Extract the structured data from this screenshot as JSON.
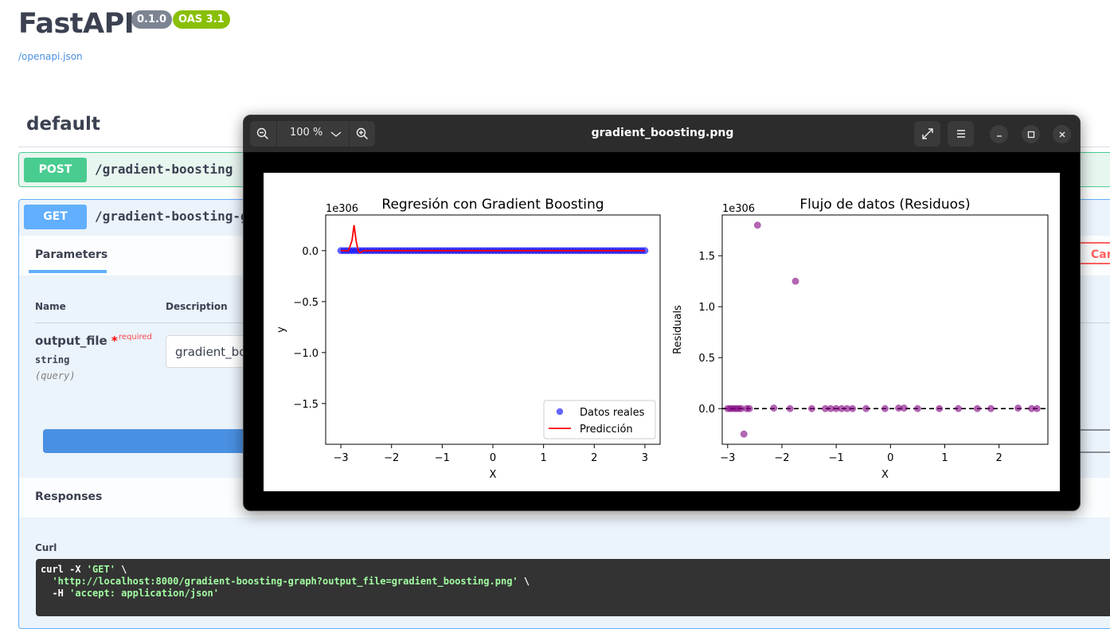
{
  "app": {
    "title": "FastAPI",
    "version_badge": "0.1.0",
    "oas_badge": "OAS 3.1",
    "spec_link": "/openapi.json",
    "section": "default"
  },
  "operations": [
    {
      "method": "POST",
      "path": "/gradient-boosting"
    },
    {
      "method": "GET",
      "path": "/gradient-boosting-g"
    }
  ],
  "params_panel": {
    "tab": "Parameters",
    "cancel_label": "Cancel",
    "col_name": "Name",
    "col_description": "Description",
    "param_name": "output_file",
    "required_star": "*",
    "required_label": "required",
    "param_type": "string",
    "param_in": "(query)",
    "param_value": "gradient_boo"
  },
  "responses": {
    "title": "Responses",
    "curl_label": "Curl",
    "curl_line1_cmd": "curl -X ",
    "curl_line1_str": "'GET'",
    "curl_line1_end": " \\",
    "curl_line2_str": "'http://localhost:8000/gradient-boosting-graph?output_file=gradient_boosting.png'",
    "curl_line2_end": " \\",
    "curl_line3_cmd": "-H ",
    "curl_line3_str": "'accept: application/json'"
  },
  "viewer": {
    "filename": "gradient_boosting.png",
    "zoom_level": "100 %",
    "icons": [
      "zoom-out-icon",
      "chevron-down-icon",
      "zoom-in-icon",
      "fullscreen-icon",
      "menu-icon",
      "minimize-icon",
      "maximize-icon",
      "close-icon"
    ]
  },
  "colors": {
    "post": "#49cc90",
    "get": "#61affe",
    "scatter_real": "#0000ff",
    "prediction_line": "#ff0000",
    "residuals": "#800080"
  },
  "chart_data": [
    {
      "type": "scatter",
      "title": "Regresión con Gradient Boosting",
      "xlabel": "X",
      "ylabel": "y",
      "offset_text": "1e306",
      "xlim": [
        -3.3,
        3.3
      ],
      "ylim": [
        -1.9,
        0.35
      ],
      "xticks": [
        -3,
        -2,
        -1,
        0,
        1,
        2,
        3
      ],
      "xtick_labels": [
        "−3",
        "−2",
        "−1",
        "0",
        "1",
        "2",
        "3"
      ],
      "yticks": [
        0.0,
        -0.5,
        -1.0,
        -1.5
      ],
      "ytick_labels": [
        "0.0",
        "−0.5",
        "−1.0",
        "−1.5"
      ],
      "legend_position": "lower-right",
      "series": [
        {
          "name": "Datos reales",
          "kind": "scatter",
          "x_range": [
            -3,
            3
          ],
          "count": 100,
          "y": 0
        },
        {
          "name": "Predicción",
          "kind": "line",
          "x": [
            -3.0,
            -2.85,
            -2.78,
            -2.74,
            -2.7,
            -2.66,
            -2.62,
            -2.55,
            3.0
          ],
          "y": [
            0.0,
            0.0,
            0.1,
            0.25,
            0.1,
            0.0,
            -0.02,
            0.0,
            0.0
          ]
        }
      ]
    },
    {
      "type": "scatter",
      "title": "Flujo de datos (Residuos)",
      "xlabel": "X",
      "ylabel": "Residuals",
      "offset_text": "1e306",
      "xlim": [
        -3.1,
        2.9
      ],
      "ylim": [
        -0.35,
        1.9
      ],
      "xticks": [
        -3,
        -2,
        -1,
        0,
        1,
        2
      ],
      "xtick_labels": [
        "−3",
        "−2",
        "−1",
        "0",
        "1",
        "2"
      ],
      "yticks": [
        0.0,
        0.5,
        1.0,
        1.5
      ],
      "ytick_labels": [
        "0.0",
        "0.5",
        "1.0",
        "1.5"
      ],
      "reference_line_y": 0,
      "series": [
        {
          "name": "Residuals",
          "kind": "scatter",
          "x": [
            -3.0,
            -2.95,
            -2.9,
            -2.85,
            -2.8,
            -2.75,
            -2.7,
            -2.65,
            -2.6,
            -2.45,
            -2.15,
            -1.75,
            -1.85,
            -1.45,
            -1.2,
            -1.1,
            -1.0,
            -0.9,
            -0.8,
            -0.7,
            -0.45,
            -0.1,
            0.15,
            0.25,
            0.5,
            0.9,
            1.25,
            1.6,
            1.85,
            2.35,
            2.6,
            2.7
          ],
          "y": [
            0.0,
            0.0,
            0.0,
            0.0,
            0.0,
            0.0,
            -0.25,
            0.0,
            0.0,
            1.8,
            0.005,
            1.25,
            0.0,
            0.0,
            0.0,
            0.0,
            0.0,
            0.0,
            0.0,
            0.0,
            0.0,
            0.0,
            0.005,
            0.005,
            0.0,
            0.0,
            0.0,
            0.0,
            0.0,
            0.005,
            0.0,
            0.0
          ]
        }
      ]
    }
  ]
}
